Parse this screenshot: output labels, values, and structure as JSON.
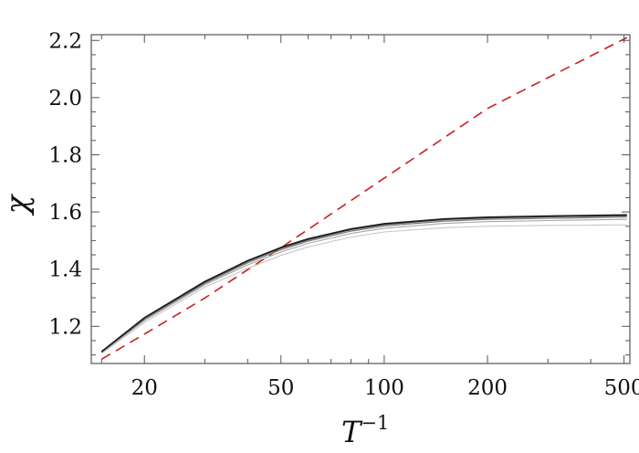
{
  "chart_data": {
    "type": "line",
    "xlabel": "T",
    "xlabel_sup": "−1",
    "ylabel": "χ",
    "x_scale": "log",
    "xlim": [
      14,
      520
    ],
    "ylim": [
      1.07,
      2.22
    ],
    "x_ticks": [
      {
        "value": 20,
        "label": "20"
      },
      {
        "value": 50,
        "label": "50"
      },
      {
        "value": 100,
        "label": "100"
      },
      {
        "value": 200,
        "label": "200"
      },
      {
        "value": 500,
        "label": "500"
      }
    ],
    "x_minor_ticks": [
      15,
      30,
      40,
      60,
      70,
      80,
      90,
      300,
      400
    ],
    "y_ticks": [
      {
        "value": 1.2,
        "label": "1.2"
      },
      {
        "value": 1.4,
        "label": "1.4"
      },
      {
        "value": 1.6,
        "label": "1.6"
      },
      {
        "value": 1.8,
        "label": "1.8"
      },
      {
        "value": 2.0,
        "label": "2.0"
      },
      {
        "value": 2.2,
        "label": "2.2"
      }
    ],
    "y_minor_ticks": [
      1.1,
      1.15,
      1.25,
      1.3,
      1.35,
      1.45,
      1.5,
      1.55,
      1.65,
      1.7,
      1.75,
      1.85,
      1.9,
      1.95,
      2.05,
      2.1,
      2.15
    ],
    "grid": false,
    "series": [
      {
        "color": "#cc1f1f",
        "dashed": true,
        "width": 1.6,
        "x": [
          15,
          20,
          30,
          50,
          100,
          200,
          510
        ],
        "y": [
          1.085,
          1.173,
          1.299,
          1.475,
          1.718,
          1.962,
          2.21
        ]
      },
      {
        "color": "#c8c8c8",
        "dashed": false,
        "width": 1.1,
        "x": [
          15,
          20,
          30,
          40,
          50,
          60,
          80,
          100,
          150,
          200,
          300,
          510
        ],
        "y": [
          1.105,
          1.213,
          1.337,
          1.403,
          1.448,
          1.478,
          1.512,
          1.53,
          1.545,
          1.55,
          1.553,
          1.555
        ]
      },
      {
        "color": "#a6a6a6",
        "dashed": false,
        "width": 1.1,
        "x": [
          15,
          20,
          30,
          40,
          50,
          60,
          80,
          100,
          150,
          200,
          300,
          510
        ],
        "y": [
          1.108,
          1.22,
          1.345,
          1.415,
          1.46,
          1.49,
          1.525,
          1.543,
          1.56,
          1.566,
          1.57,
          1.574
        ]
      },
      {
        "color": "#7a7a7a",
        "dashed": false,
        "width": 1.2,
        "x": [
          15,
          20,
          30,
          40,
          50,
          60,
          80,
          100,
          150,
          200,
          300,
          510
        ],
        "y": [
          1.11,
          1.225,
          1.35,
          1.422,
          1.468,
          1.498,
          1.533,
          1.551,
          1.568,
          1.574,
          1.578,
          1.582
        ]
      },
      {
        "color": "#4a4a4a",
        "dashed": false,
        "width": 1.3,
        "x": [
          15,
          20,
          30,
          40,
          50,
          60,
          80,
          100,
          150,
          200,
          300,
          510
        ],
        "y": [
          1.111,
          1.228,
          1.354,
          1.427,
          1.473,
          1.503,
          1.538,
          1.556,
          1.573,
          1.579,
          1.583,
          1.587
        ]
      },
      {
        "color": "#1a1a1a",
        "dashed": false,
        "width": 1.5,
        "x": [
          15,
          20,
          30,
          40,
          50,
          60,
          80,
          100,
          150,
          200,
          300,
          510
        ],
        "y": [
          1.112,
          1.23,
          1.357,
          1.43,
          1.476,
          1.506,
          1.541,
          1.559,
          1.576,
          1.582,
          1.586,
          1.59
        ]
      }
    ]
  }
}
